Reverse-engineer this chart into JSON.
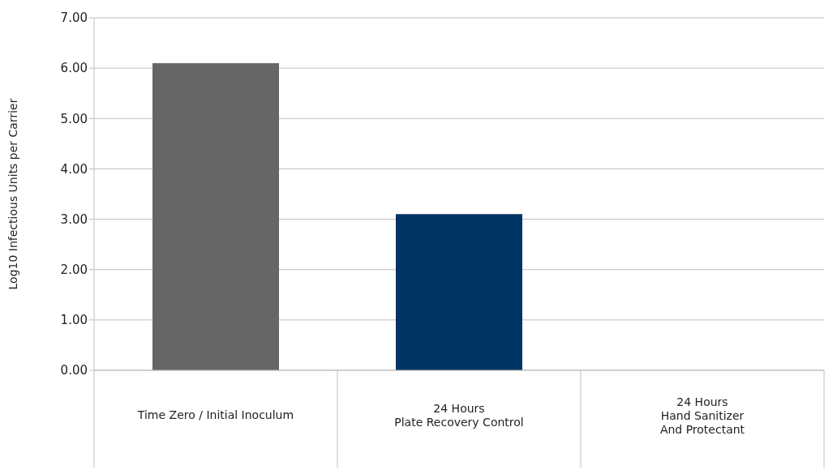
{
  "chart_data": {
    "type": "bar",
    "ylabel": "Log10 Infectious Units per Carrier",
    "categories": [
      "Time Zero / Initial Inoculum",
      "24 Hours\nPlate Recovery Control",
      "24 Hours\nHand Sanitizer\nAnd Protectant"
    ],
    "values": [
      6.1,
      3.1,
      0
    ],
    "colors": [
      "#666666",
      "#003462",
      "#4f81bd"
    ],
    "ylim": [
      0,
      7
    ],
    "yticks": [
      {
        "value": 0,
        "label": "0.00"
      },
      {
        "value": 1,
        "label": "1.00"
      },
      {
        "value": 2,
        "label": "2.00"
      },
      {
        "value": 3,
        "label": "3.00"
      },
      {
        "value": 4,
        "label": "4.00"
      },
      {
        "value": 5,
        "label": "5.00"
      },
      {
        "value": 6,
        "label": "6.00"
      },
      {
        "value": 7,
        "label": "7.00"
      }
    ],
    "grid": "y",
    "legend": false
  }
}
